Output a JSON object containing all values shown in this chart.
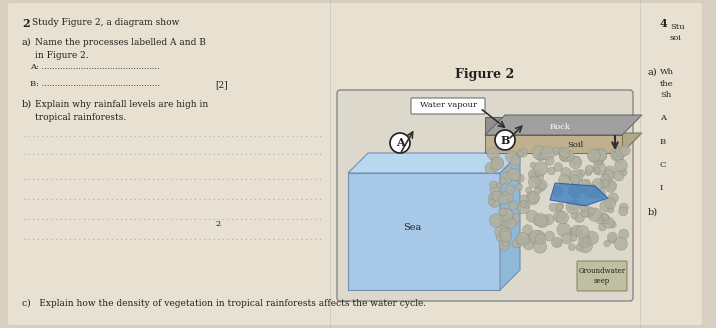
{
  "bg_color": "#d8cfc0",
  "page_bg": "#e8e0d0",
  "fig_title": "Figure 2",
  "question_num": "2",
  "question_text": "Study Figure 2, a diagram show",
  "qa_label": "a)",
  "qa_text": "Name the processes labelled A and B\nin Figure 2.",
  "a_line": "A: ......................................................",
  "b_line": "B: ......................................................",
  "marks_a": "[2]",
  "qb_label": "b)",
  "qb_text": "Explain why rainfall levels are high in\ntropical rainforests.",
  "dotted_lines": [
    "......................................................",
    "......................................................"
  ],
  "qc_text": "c)   Explain how the density of vegetation in tropical rainforests affects the water cycle.",
  "labels": {
    "water_vapour": "Water vapour",
    "A": "A",
    "B": "B",
    "Sea": "Sea",
    "Soil": "Soil",
    "Rock": "Rock",
    "Groundwater": "Groundwater\nseep"
  },
  "colors": {
    "sea_blue": "#a8c8e8",
    "sea_dark": "#7090b0",
    "soil_tan": "#b8a878",
    "rock_gray": "#808080",
    "rock_dark": "#606060",
    "vegetation_gray": "#909090",
    "water_blue": "#4080c0",
    "arrow_dark": "#303030",
    "box_outline": "#404040",
    "text_dark": "#202020",
    "line_color": "#888888",
    "groundwater_box": "#c0c0a0"
  }
}
